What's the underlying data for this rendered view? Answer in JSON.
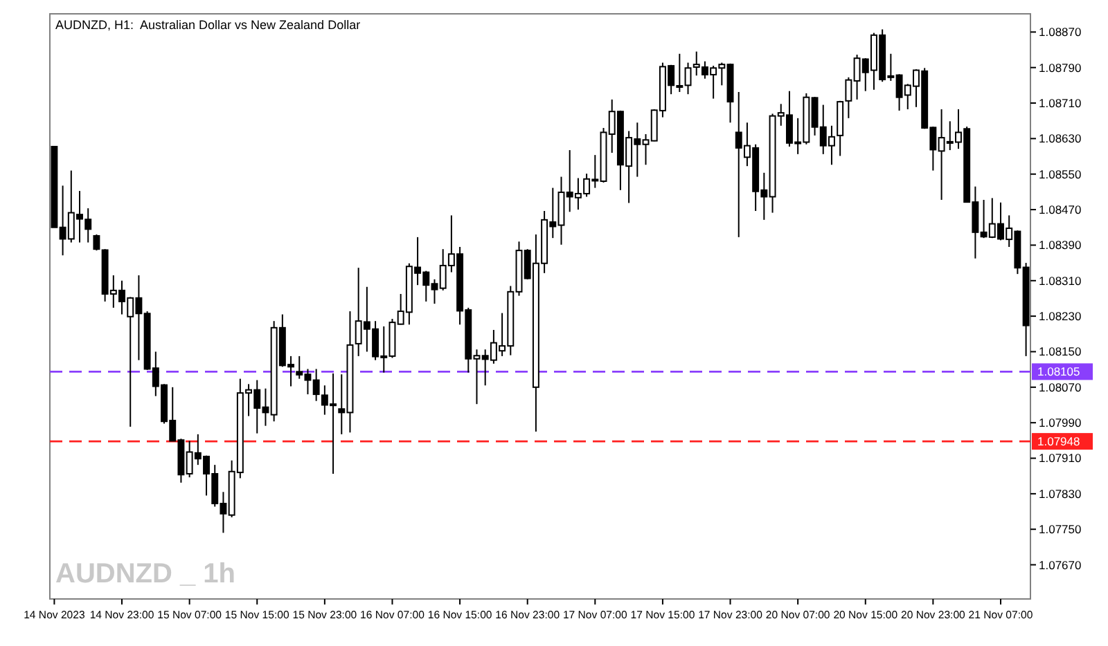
{
  "chart_data": {
    "type": "candlestick",
    "title": "AUDNZD, H1:  Australian Dollar vs New Zealand Dollar",
    "annotations": [
      "AUDNZD _ 1h"
    ],
    "categories": [
      "14 Nov 2023",
      null,
      null,
      null,
      null,
      null,
      null,
      null,
      "14 Nov 23:00",
      null,
      null,
      null,
      null,
      null,
      null,
      null,
      "15 Nov 07:00",
      null,
      null,
      null,
      null,
      null,
      null,
      null,
      "15 Nov 15:00",
      null,
      null,
      null,
      null,
      null,
      null,
      null,
      "15 Nov 23:00",
      null,
      null,
      null,
      null,
      null,
      null,
      null,
      "16 Nov 07:00",
      null,
      null,
      null,
      null,
      null,
      null,
      null,
      "16 Nov 15:00",
      null,
      null,
      null,
      null,
      null,
      null,
      null,
      "16 Nov 23:00",
      null,
      null,
      null,
      null,
      null,
      null,
      null,
      "17 Nov 07:00",
      null,
      null,
      null,
      null,
      null,
      null,
      null,
      "17 Nov 15:00",
      null,
      null,
      null,
      null,
      null,
      null,
      null,
      "17 Nov 23:00",
      null,
      null,
      null,
      null,
      null,
      null,
      null,
      "20 Nov 07:00",
      null,
      null,
      null,
      null,
      null,
      null,
      null,
      "20 Nov 15:00",
      null,
      null,
      null,
      null,
      null,
      null,
      null,
      "20 Nov 23:00",
      null,
      null,
      null,
      null,
      null,
      null,
      null,
      "21 Nov 07:00",
      null,
      null,
      null
    ],
    "ohlc": [
      [
        1.08612,
        1.08612,
        1.0843,
        1.0843
      ],
      [
        1.0843,
        1.08524,
        1.08367,
        1.08404
      ],
      [
        1.08404,
        1.08558,
        1.08396,
        1.08463
      ],
      [
        1.08459,
        1.08512,
        1.08396,
        1.08449
      ],
      [
        1.08448,
        1.08473,
        1.08396,
        1.08426
      ],
      [
        1.08411,
        1.08414,
        1.08378,
        1.08381
      ],
      [
        1.08379,
        1.08381,
        1.08263,
        1.0828
      ],
      [
        1.0828,
        1.08322,
        1.08249,
        1.08288
      ],
      [
        1.08288,
        1.0831,
        1.08234,
        1.08263
      ],
      [
        1.08229,
        1.08273,
        1.07981,
        1.08271
      ],
      [
        1.08271,
        1.08322,
        1.08131,
        1.08236
      ],
      [
        1.08236,
        1.08241,
        1.08109,
        1.08111
      ],
      [
        1.08113,
        1.0815,
        1.0805,
        1.08072
      ],
      [
        1.08075,
        1.08077,
        1.07988,
        1.07993
      ],
      [
        1.07995,
        1.0807,
        1.07949,
        1.07949
      ],
      [
        1.07951,
        1.07954,
        1.07855,
        1.07873
      ],
      [
        1.07875,
        1.07949,
        1.07867,
        1.07924
      ],
      [
        1.07922,
        1.07964,
        1.07895,
        1.07909
      ],
      [
        1.07914,
        1.07916,
        1.07826,
        1.07875
      ],
      [
        1.07875,
        1.07895,
        1.07801,
        1.07808
      ],
      [
        1.07808,
        1.07834,
        1.07742,
        1.07785
      ],
      [
        1.07782,
        1.07905,
        1.07777,
        1.0788
      ],
      [
        1.07878,
        1.08089,
        1.07865,
        1.08057
      ],
      [
        1.08057,
        1.08077,
        1.08005,
        1.08064
      ],
      [
        1.08064,
        1.08086,
        1.07966,
        1.08023
      ],
      [
        1.08025,
        1.08067,
        1.07983,
        1.08013
      ],
      [
        1.08008,
        1.08219,
        1.07993,
        1.08204
      ],
      [
        1.08204,
        1.08234,
        1.08116,
        1.08119
      ],
      [
        1.08121,
        1.0814,
        1.08072,
        1.08116
      ],
      [
        1.08105,
        1.0814,
        1.08089,
        1.08098
      ],
      [
        1.08099,
        1.08111,
        1.08054,
        1.08086
      ],
      [
        1.08086,
        1.08111,
        1.08039,
        1.08054
      ],
      [
        1.08052,
        1.08074,
        1.08008,
        1.0803
      ],
      [
        1.08032,
        1.08101,
        1.07875,
        1.08029
      ],
      [
        1.08021,
        1.08099,
        1.07964,
        1.08013
      ],
      [
        1.08013,
        1.08241,
        1.07968,
        1.08165
      ],
      [
        1.08168,
        1.08339,
        1.0814,
        1.08219
      ],
      [
        1.08217,
        1.08296,
        1.0815,
        1.08201
      ],
      [
        1.08201,
        1.08219,
        1.08131,
        1.08139
      ],
      [
        1.0814,
        1.08207,
        1.08103,
        1.08138
      ],
      [
        1.0814,
        1.08224,
        1.08136,
        1.08216
      ],
      [
        1.08212,
        1.0828,
        1.08211,
        1.08241
      ],
      [
        1.08239,
        1.08349,
        1.08211,
        1.08342
      ],
      [
        1.0834,
        1.08408,
        1.083,
        1.08327
      ],
      [
        1.08329,
        1.08332,
        1.08263,
        1.083
      ],
      [
        1.08303,
        1.08313,
        1.08258,
        1.0829
      ],
      [
        1.08293,
        1.08381,
        1.08288,
        1.08344
      ],
      [
        1.08344,
        1.08457,
        1.08329,
        1.0837
      ],
      [
        1.0837,
        1.08386,
        1.08211,
        1.08242
      ],
      [
        1.08244,
        1.08249,
        1.08103,
        1.08134
      ],
      [
        1.08134,
        1.08155,
        1.08032,
        1.08141
      ],
      [
        1.08141,
        1.08155,
        1.08074,
        1.08133
      ],
      [
        1.08131,
        1.08199,
        1.08123,
        1.0817
      ],
      [
        1.08152,
        1.08237,
        1.0814,
        1.08163
      ],
      [
        1.08163,
        1.08298,
        1.08142,
        1.08285
      ],
      [
        1.08285,
        1.08398,
        1.08276,
        1.08378
      ],
      [
        1.08378,
        1.08381,
        1.08313,
        1.08315
      ],
      [
        1.0807,
        1.08414,
        1.0797,
        1.08349
      ],
      [
        1.08349,
        1.08467,
        1.08327,
        1.08447
      ],
      [
        1.08442,
        1.08519,
        1.08406,
        1.08432
      ],
      [
        1.08435,
        1.08544,
        1.08391,
        1.08509
      ],
      [
        1.08509,
        1.08604,
        1.08465,
        1.08499
      ],
      [
        1.08497,
        1.08541,
        1.0847,
        1.08506
      ],
      [
        1.08506,
        1.08551,
        1.08499,
        1.08539
      ],
      [
        1.08536,
        1.08593,
        1.08519,
        1.08538
      ],
      [
        1.08534,
        1.08654,
        1.08531,
        1.08644
      ],
      [
        1.0864,
        1.08718,
        1.08598,
        1.08691
      ],
      [
        1.08691,
        1.08693,
        1.08514,
        1.08571
      ],
      [
        1.08568,
        1.08647,
        1.08485,
        1.08632
      ],
      [
        1.08629,
        1.08666,
        1.08544,
        1.08617
      ],
      [
        1.08617,
        1.0864,
        1.08571,
        1.08627
      ],
      [
        1.08625,
        1.08696,
        1.08624,
        1.08694
      ],
      [
        1.08693,
        1.08801,
        1.08678,
        1.08792
      ],
      [
        1.08794,
        1.08796,
        1.0873,
        1.0875
      ],
      [
        1.08749,
        1.08821,
        1.08735,
        1.08748
      ],
      [
        1.0875,
        1.08801,
        1.0873,
        1.08789
      ],
      [
        1.08791,
        1.08826,
        1.08772,
        1.08797
      ],
      [
        1.08791,
        1.08804,
        1.08765,
        1.08774
      ],
      [
        1.08774,
        1.08794,
        1.0872,
        1.08789
      ],
      [
        1.08789,
        1.08801,
        1.0875,
        1.08797
      ],
      [
        1.08797,
        1.08799,
        1.08666,
        1.08713
      ],
      [
        1.08644,
        1.08735,
        1.08408,
        1.08609
      ],
      [
        1.08588,
        1.08666,
        1.08568,
        1.08614
      ],
      [
        1.08609,
        1.08617,
        1.08467,
        1.08511
      ],
      [
        1.08514,
        1.08553,
        1.08447,
        1.08499
      ],
      [
        1.08499,
        1.08686,
        1.08463,
        1.08681
      ],
      [
        1.08681,
        1.08708,
        1.08659,
        1.08688
      ],
      [
        1.08683,
        1.08737,
        1.08612,
        1.0862
      ],
      [
        1.08622,
        1.08676,
        1.08595,
        1.0862
      ],
      [
        1.08622,
        1.08732,
        1.08617,
        1.08723
      ],
      [
        1.08722,
        1.08724,
        1.08637,
        1.08656
      ],
      [
        1.08656,
        1.08706,
        1.08595,
        1.08614
      ],
      [
        1.08614,
        1.08659,
        1.08571,
        1.08634
      ],
      [
        1.08637,
        1.08715,
        1.08591,
        1.08713
      ],
      [
        1.08715,
        1.08768,
        1.08676,
        1.08762
      ],
      [
        1.0876,
        1.08819,
        1.08718,
        1.08811
      ],
      [
        1.08809,
        1.08811,
        1.08737,
        1.08779
      ],
      [
        1.08784,
        1.08868,
        1.0874,
        1.08863
      ],
      [
        1.08863,
        1.08876,
        1.08758,
        1.08763
      ],
      [
        1.08771,
        1.08821,
        1.0876,
        1.08769
      ],
      [
        1.08773,
        1.08775,
        1.08693,
        1.08723
      ],
      [
        1.08728,
        1.08753,
        1.08696,
        1.0875
      ],
      [
        1.08748,
        1.08786,
        1.08701,
        1.08784
      ],
      [
        1.08782,
        1.08789,
        1.08652,
        1.08654
      ],
      [
        1.08655,
        1.08657,
        1.08558,
        1.08605
      ],
      [
        1.08602,
        1.08696,
        1.08492,
        1.08632
      ],
      [
        1.08623,
        1.08669,
        1.08604,
        1.08621
      ],
      [
        1.08622,
        1.08696,
        1.08607,
        1.08644
      ],
      [
        1.08652,
        1.08657,
        1.08486,
        1.08487
      ],
      [
        1.08487,
        1.08522,
        1.0836,
        1.08419
      ],
      [
        1.08419,
        1.08492,
        1.08406,
        1.08409
      ],
      [
        1.08408,
        1.08496,
        1.08406,
        1.08438
      ],
      [
        1.08438,
        1.08486,
        1.08401,
        1.08404
      ],
      [
        1.08403,
        1.08457,
        1.08386,
        1.08428
      ],
      [
        1.08421,
        1.08423,
        1.08325,
        1.08339
      ],
      [
        1.0834,
        1.0835,
        1.0814,
        1.08209
      ]
    ],
    "ylim": [
      1.07593,
      1.08911
    ],
    "yticks": [
      {
        "value": 1.0887,
        "label": "1.08870"
      },
      {
        "value": 1.0879,
        "label": "1.08790"
      },
      {
        "value": 1.0871,
        "label": "1.08710"
      },
      {
        "value": 1.0863,
        "label": "1.08630"
      },
      {
        "value": 1.0855,
        "label": "1.08550"
      },
      {
        "value": 1.0847,
        "label": "1.08470"
      },
      {
        "value": 1.0839,
        "label": "1.08390"
      },
      {
        "value": 1.0831,
        "label": "1.08310"
      },
      {
        "value": 1.0823,
        "label": "1.08230"
      },
      {
        "value": 1.0815,
        "label": "1.08150"
      },
      {
        "value": 1.0807,
        "label": "1.08070"
      },
      {
        "value": 1.0799,
        "label": "1.07990"
      },
      {
        "value": 1.0791,
        "label": "1.07910"
      },
      {
        "value": 1.0783,
        "label": "1.07830"
      },
      {
        "value": 1.0775,
        "label": "1.07750"
      },
      {
        "value": 1.0767,
        "label": "1.07670"
      }
    ],
    "ref_lines": [
      {
        "axis": "y",
        "value": 1.08105,
        "label": "1.08105",
        "color": "#8a3ffc",
        "line_style": "dashed"
      },
      {
        "axis": "y",
        "value": 1.07948,
        "label": "1.07948",
        "color": "#ff2020",
        "line_style": "dashed"
      }
    ]
  }
}
